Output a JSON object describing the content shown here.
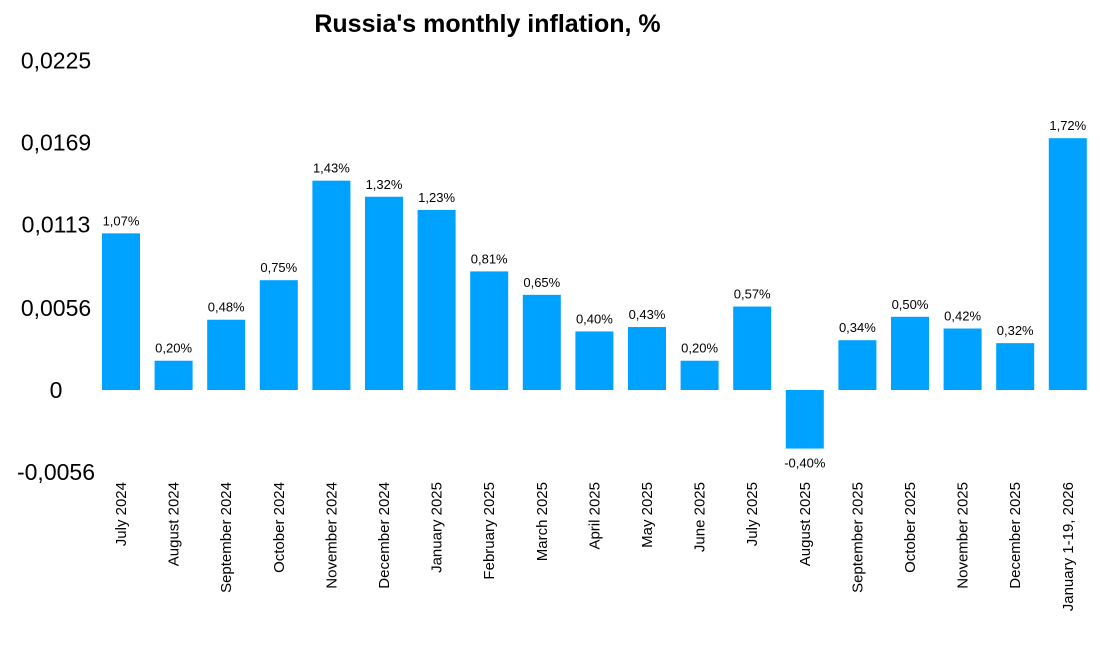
{
  "chart_data": {
    "type": "bar",
    "title": "Russia's monthly inflation, %",
    "xlabel": "",
    "ylabel": "",
    "ylim": [
      -0.0056,
      0.0225
    ],
    "yticks": [
      0.0225,
      0.0169,
      0.0113,
      0.0056,
      0,
      -0.0056
    ],
    "ytick_labels": [
      "0,0225",
      "0,0169",
      "0,0113",
      "0,0056",
      "0",
      "-0,0056"
    ],
    "grid": false,
    "color": "#00A2FF",
    "categories": [
      "July 2024",
      "August 2024",
      "September 2024",
      "October 2024",
      "November 2024",
      "December 2024",
      "January 2025",
      "February 2025",
      "March 2025",
      "April 2025",
      "May 2025",
      "June 2025",
      "July 2025",
      "August 2025",
      "September 2025",
      "October 2025",
      "November 2025",
      "December 2025",
      "January 1-19, 2026"
    ],
    "values": [
      0.0107,
      0.002,
      0.0048,
      0.0075,
      0.0143,
      0.0132,
      0.0123,
      0.0081,
      0.0065,
      0.004,
      0.0043,
      0.002,
      0.0057,
      -0.004,
      0.0034,
      0.005,
      0.0042,
      0.0032,
      0.0172
    ],
    "data_labels": [
      "1,07%",
      "0,20%",
      "0,48%",
      "0,75%",
      "1,43%",
      "1,32%",
      "1,23%",
      "0,81%",
      "0,65%",
      "0,40%",
      "0,43%",
      "0,20%",
      "0,57%",
      "-0,40%",
      "0,34%",
      "0,50%",
      "0,42%",
      "0,32%",
      "1,72%"
    ]
  }
}
